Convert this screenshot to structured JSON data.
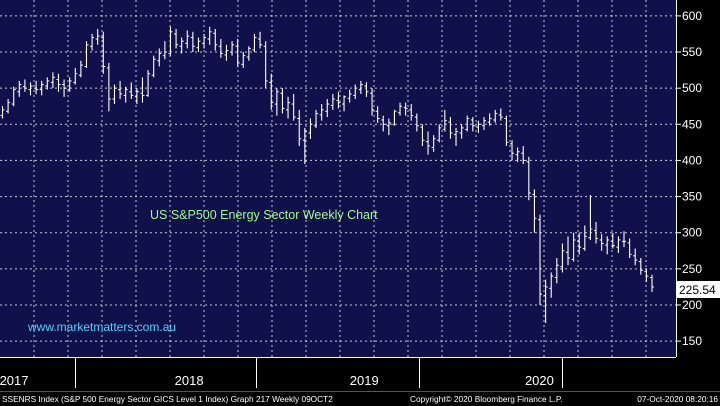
{
  "chart_data": {
    "type": "ohlc",
    "title": "US S&P500 Energy Sector Weekly Chart",
    "watermark": "www.marketmatters.com.au",
    "y_ticks": [
      150,
      200,
      250,
      300,
      350,
      400,
      450,
      500,
      550,
      600
    ],
    "ylim": [
      128,
      622
    ],
    "x_range": [
      2016.92,
      2020.78
    ],
    "year_ticks": [
      {
        "label": "2017",
        "value": 2017
      },
      {
        "label": "2018",
        "value": 2018
      },
      {
        "label": "2019",
        "value": 2019
      },
      {
        "label": "2020",
        "value": 2020
      }
    ],
    "year_boundaries": [
      2017.35,
      2018.38,
      2019.31,
      2020.13
    ],
    "last_value": "225.54",
    "series": [
      {
        "values": [
          [
            462,
            475,
            458,
            470
          ],
          [
            468,
            485,
            465,
            480
          ],
          [
            478,
            502,
            475,
            498
          ],
          [
            495,
            510,
            488,
            505
          ],
          [
            502,
            512,
            495,
            500
          ],
          [
            498,
            508,
            490,
            503
          ],
          [
            500,
            510,
            492,
            498
          ],
          [
            498,
            510,
            490,
            505
          ],
          [
            503,
            515,
            498,
            510
          ],
          [
            508,
            522,
            500,
            515
          ],
          [
            512,
            520,
            495,
            505
          ],
          [
            505,
            512,
            488,
            500
          ],
          [
            498,
            515,
            495,
            510
          ],
          [
            508,
            528,
            505,
            520
          ],
          [
            518,
            538,
            515,
            532
          ],
          [
            530,
            565,
            528,
            560
          ],
          [
            558,
            575,
            552,
            570
          ],
          [
            568,
            582,
            560,
            572
          ],
          [
            570,
            578,
            520,
            530
          ],
          [
            528,
            535,
            468,
            485
          ],
          [
            485,
            505,
            478,
            500
          ],
          [
            498,
            510,
            485,
            492
          ],
          [
            490,
            502,
            480,
            498
          ],
          [
            495,
            508,
            485,
            490
          ],
          [
            488,
            500,
            478,
            495
          ],
          [
            493,
            515,
            480,
            490
          ],
          [
            490,
            525,
            488,
            520
          ],
          [
            518,
            545,
            515,
            540
          ],
          [
            538,
            555,
            530,
            548
          ],
          [
            545,
            565,
            540,
            550
          ],
          [
            548,
            585,
            545,
            578
          ],
          [
            575,
            582,
            555,
            560
          ],
          [
            558,
            570,
            548,
            565
          ],
          [
            562,
            580,
            555,
            572
          ],
          [
            570,
            578,
            550,
            558
          ],
          [
            556,
            570,
            550,
            565
          ],
          [
            562,
            575,
            555,
            570
          ],
          [
            568,
            585,
            560,
            578
          ],
          [
            576,
            582,
            552,
            560
          ],
          [
            558,
            568,
            542,
            548
          ],
          [
            546,
            560,
            538,
            552
          ],
          [
            550,
            565,
            545,
            560
          ],
          [
            558,
            568,
            530,
            535
          ],
          [
            533,
            550,
            528,
            545
          ],
          [
            543,
            558,
            538,
            555
          ],
          [
            553,
            575,
            550,
            570
          ],
          [
            568,
            578,
            555,
            560
          ],
          [
            558,
            565,
            500,
            510
          ],
          [
            508,
            520,
            470,
            480
          ],
          [
            478,
            500,
            462,
            495
          ],
          [
            493,
            500,
            465,
            472
          ],
          [
            470,
            488,
            458,
            480
          ],
          [
            478,
            492,
            455,
            460
          ],
          [
            458,
            470,
            420,
            430
          ],
          [
            428,
            445,
            395,
            440
          ],
          [
            438,
            458,
            430,
            450
          ],
          [
            448,
            470,
            445,
            465
          ],
          [
            463,
            478,
            455,
            470
          ],
          [
            468,
            485,
            460,
            478
          ],
          [
            476,
            492,
            470,
            485
          ],
          [
            483,
            495,
            472,
            480
          ],
          [
            478,
            490,
            468,
            488
          ],
          [
            486,
            498,
            480,
            492
          ],
          [
            490,
            505,
            485,
            500
          ],
          [
            498,
            510,
            492,
            505
          ],
          [
            503,
            508,
            488,
            495
          ],
          [
            493,
            500,
            462,
            470
          ],
          [
            468,
            475,
            452,
            458
          ],
          [
            456,
            462,
            440,
            450
          ],
          [
            448,
            458,
            435,
            452
          ],
          [
            450,
            470,
            448,
            468
          ],
          [
            466,
            480,
            462,
            475
          ],
          [
            473,
            480,
            462,
            472
          ],
          [
            470,
            478,
            455,
            462
          ],
          [
            460,
            465,
            440,
            448
          ],
          [
            446,
            450,
            420,
            428
          ],
          [
            426,
            440,
            408,
            420
          ],
          [
            418,
            435,
            412,
            430
          ],
          [
            428,
            450,
            425,
            445
          ],
          [
            443,
            470,
            440,
            455
          ],
          [
            453,
            460,
            430,
            438
          ],
          [
            436,
            445,
            420,
            440
          ],
          [
            438,
            450,
            430,
            445
          ],
          [
            443,
            462,
            440,
            458
          ],
          [
            456,
            460,
            440,
            448
          ],
          [
            446,
            455,
            438,
            450
          ],
          [
            448,
            460,
            442,
            455
          ],
          [
            453,
            465,
            448,
            458
          ],
          [
            456,
            470,
            452,
            465
          ],
          [
            463,
            472,
            455,
            460
          ],
          [
            458,
            462,
            420,
            425
          ],
          [
            423,
            428,
            400,
            410
          ],
          [
            408,
            418,
            398,
            412
          ],
          [
            410,
            420,
            395,
            400
          ],
          [
            398,
            405,
            345,
            355
          ],
          [
            353,
            360,
            300,
            320
          ],
          [
            318,
            325,
            200,
            215
          ],
          [
            213,
            235,
            175,
            225
          ],
          [
            223,
            245,
            210,
            240
          ],
          [
            238,
            265,
            230,
            255
          ],
          [
            253,
            285,
            245,
            275
          ],
          [
            273,
            295,
            255,
            265
          ],
          [
            263,
            300,
            260,
            290
          ],
          [
            288,
            300,
            270,
            280
          ],
          [
            278,
            310,
            275,
            295
          ],
          [
            293,
            352,
            290,
            305
          ],
          [
            303,
            315,
            285,
            292
          ],
          [
            290,
            298,
            275,
            285
          ],
          [
            283,
            295,
            270,
            290
          ],
          [
            288,
            300,
            278,
            282
          ],
          [
            280,
            295,
            272,
            290
          ],
          [
            288,
            302,
            280,
            288
          ],
          [
            286,
            292,
            265,
            270
          ],
          [
            268,
            278,
            255,
            262
          ],
          [
            260,
            265,
            242,
            248
          ],
          [
            246,
            250,
            232,
            240
          ],
          [
            238,
            242,
            218,
            225
          ]
        ]
      }
    ]
  },
  "footer": {
    "source": "SSENRS Index (S&P 500 Energy Sector GICS Level 1 Index) Graph 217  Weekly 09OCT2",
    "copyright": "Copyright© 2020 Bloomberg Finance L.P.",
    "timestamp": "07-Oct-2020 08:20:16"
  },
  "colors": {
    "background": "#000000",
    "plot_background": "#10104a",
    "grid": "#c8c8d8",
    "bars": "#ffffff",
    "title": "#9eff86",
    "watermark": "#4fd2ff",
    "axis_text": "#ffffff",
    "last_value_box": "#ffffff",
    "last_value_text": "#000000"
  }
}
